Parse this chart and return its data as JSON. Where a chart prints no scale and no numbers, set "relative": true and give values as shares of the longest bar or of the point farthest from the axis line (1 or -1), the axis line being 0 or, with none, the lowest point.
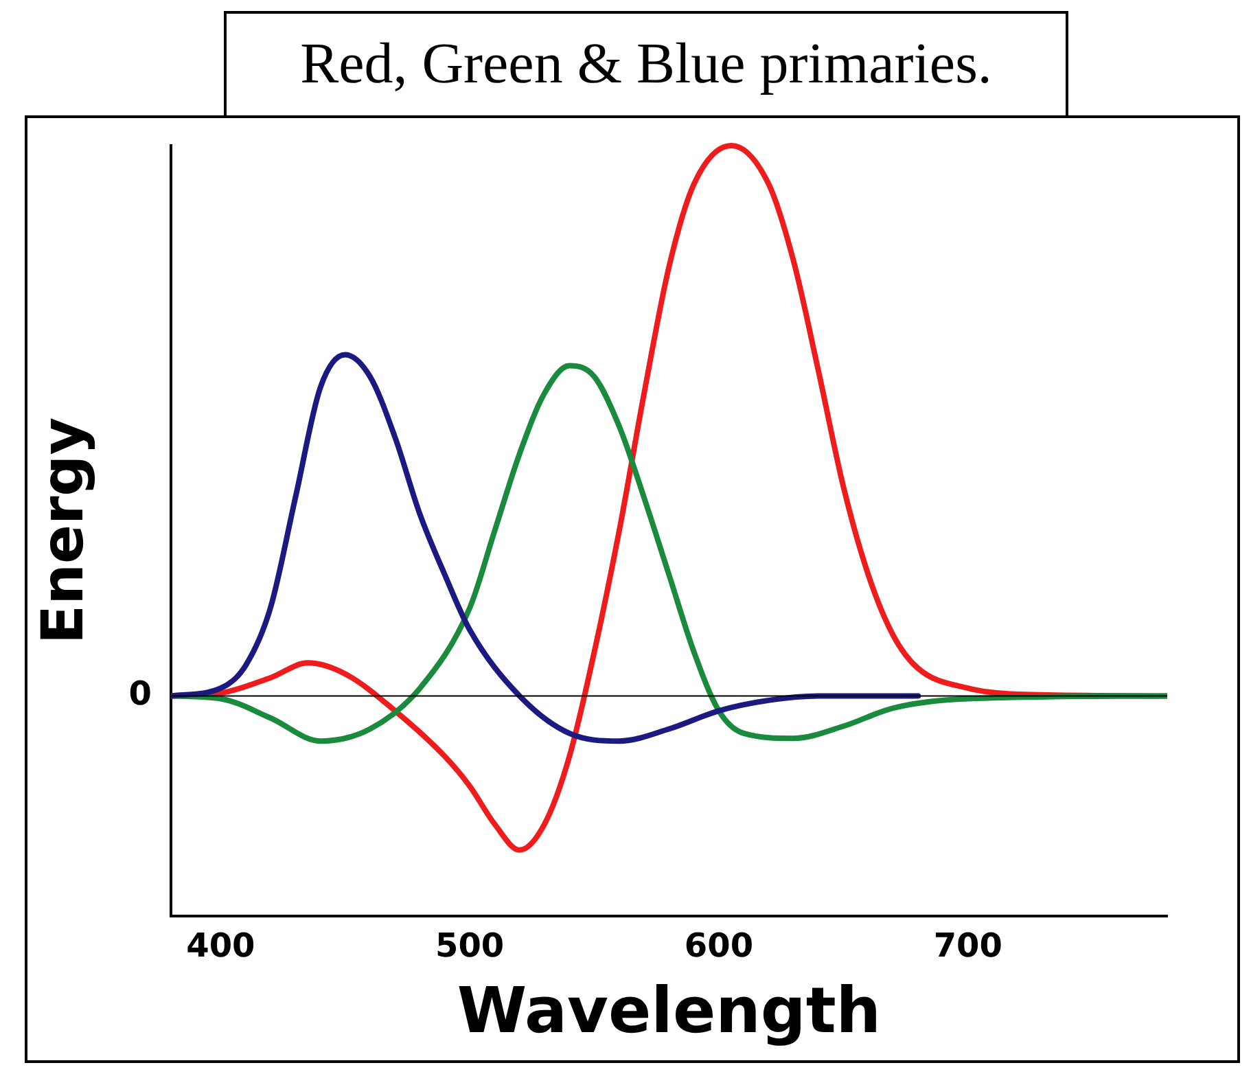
{
  "chart_data": {
    "type": "line",
    "title": "Red, Green & Blue primaries.",
    "xlabel": "Wavelength",
    "ylabel": "Energy",
    "relative": true,
    "annotations": [
      "0"
    ],
    "xlim": [
      380,
      780
    ],
    "xticks": [
      400,
      500,
      600,
      700
    ],
    "grid": false,
    "legend": false,
    "marker": "none",
    "line_style": "solid",
    "series": [
      {
        "color": "#1c1a80",
        "x": [
          380,
          400,
          410,
          420,
          430,
          440,
          450,
          460,
          470,
          480,
          490,
          500,
          520,
          540,
          560,
          580,
          600,
          620,
          640,
          680
        ],
        "values": [
          0,
          0.014,
          0.055,
          0.16,
          0.36,
          0.56,
          0.62,
          0.58,
          0.47,
          0.33,
          0.22,
          0.12,
          0,
          -0.068,
          -0.082,
          -0.06,
          -0.027,
          -0.008,
          0,
          0
        ]
      },
      {
        "color": "#1a8a3c",
        "x": [
          380,
          400,
          420,
          440,
          460,
          480,
          500,
          510,
          520,
          530,
          540,
          550,
          560,
          570,
          580,
          590,
          600,
          610,
          630,
          650,
          670,
          700,
          780
        ],
        "values": [
          0,
          -0.005,
          -0.04,
          -0.082,
          -0.06,
          0.014,
          0.16,
          0.3,
          0.44,
          0.55,
          0.6,
          0.58,
          0.49,
          0.36,
          0.22,
          0.08,
          -0.027,
          -0.068,
          -0.077,
          -0.055,
          -0.022,
          -0.005,
          0
        ]
      },
      {
        "color": "#ee1c1c",
        "x": [
          380,
          400,
          420,
          435,
          450,
          470,
          490,
          500,
          510,
          520,
          530,
          540,
          550,
          560,
          570,
          580,
          590,
          605,
          620,
          630,
          640,
          650,
          660,
          670,
          680,
          700,
          720,
          780
        ],
        "values": [
          0,
          0.005,
          0.033,
          0.06,
          0.04,
          -0.027,
          -0.11,
          -0.164,
          -0.233,
          -0.28,
          -0.233,
          -0.11,
          0.08,
          0.3,
          0.55,
          0.78,
          0.93,
          1,
          0.93,
          0.79,
          0.59,
          0.38,
          0.22,
          0.11,
          0.05,
          0.014,
          0.003,
          0
        ]
      }
    ]
  }
}
